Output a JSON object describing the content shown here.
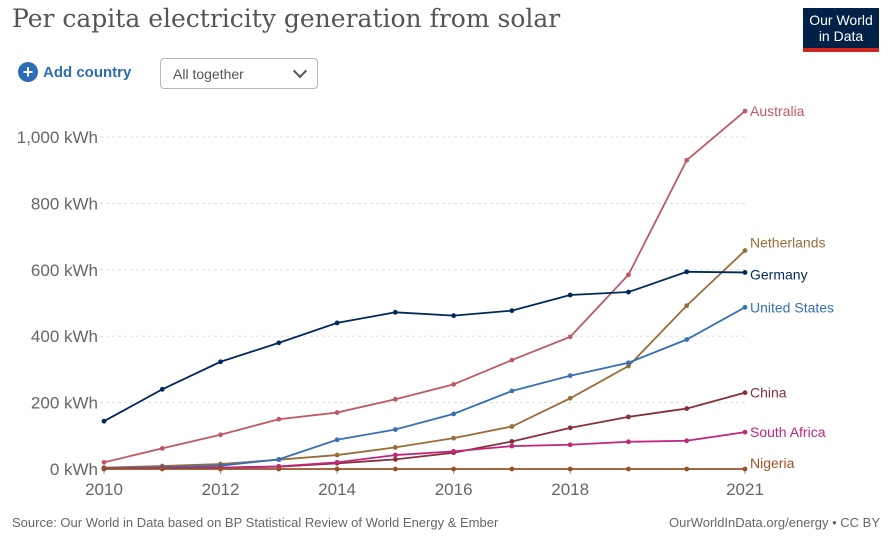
{
  "header": {
    "title": "Per capita electricity generation from solar",
    "logo_line1": "Our World",
    "logo_line2": "in Data"
  },
  "controls": {
    "add_country_label": "Add country",
    "add_icon": "plus-circle-icon",
    "select_value": "All together",
    "select_icon": "chevron-down-icon"
  },
  "footer": {
    "source": "Source: Our World in Data based on BP Statistical Review of World Energy & Ember",
    "credit": "OurWorldInData.org/energy • CC BY"
  },
  "chart_data": {
    "type": "line",
    "title": "Per capita electricity generation from solar",
    "x_ticks": [
      "2010",
      "2012",
      "2014",
      "2016",
      "2018",
      "2021"
    ],
    "y_ticks": [
      "0 kWh",
      "200 kWh",
      "400 kWh",
      "600 kWh",
      "800 kWh",
      "1,000 kWh"
    ],
    "xlim": [
      2010,
      2021
    ],
    "ylim": [
      0,
      1000
    ],
    "grid": true,
    "legend": "inline-right",
    "x": [
      2010,
      2011,
      2012,
      2013,
      2014,
      2015,
      2016,
      2017,
      2018,
      2019,
      2020,
      2021
    ],
    "series": [
      {
        "name": "Australia",
        "color": "#bf5a64",
        "values": [
          20,
          62,
          103,
          150,
          170,
          210,
          255,
          328,
          398,
          585,
          930,
          1078
        ]
      },
      {
        "name": "Netherlands",
        "color": "#996d39",
        "values": [
          4,
          9,
          15,
          28,
          42,
          65,
          93,
          128,
          213,
          310,
          492,
          658
        ]
      },
      {
        "name": "Germany",
        "color": "#00295b",
        "values": [
          144,
          240,
          323,
          380,
          440,
          472,
          462,
          477,
          524,
          533,
          594,
          592
        ]
      },
      {
        "name": "United States",
        "color": "#3870b4",
        "values": [
          2,
          5,
          10,
          29,
          88,
          119,
          166,
          235,
          281,
          320,
          390,
          487
        ]
      },
      {
        "name": "China",
        "color": "#883039",
        "values": [
          1,
          2,
          4,
          7,
          17,
          29,
          49,
          83,
          124,
          157,
          182,
          230
        ]
      },
      {
        "name": "South Africa",
        "color": "#c1267a",
        "values": [
          1,
          2,
          4,
          8,
          20,
          42,
          53,
          69,
          73,
          82,
          85,
          111
        ]
      },
      {
        "name": "Nigeria",
        "color": "#9a5129",
        "values": [
          0,
          0,
          0,
          0,
          0,
          0,
          0,
          0,
          0,
          0,
          0,
          0
        ]
      }
    ]
  }
}
